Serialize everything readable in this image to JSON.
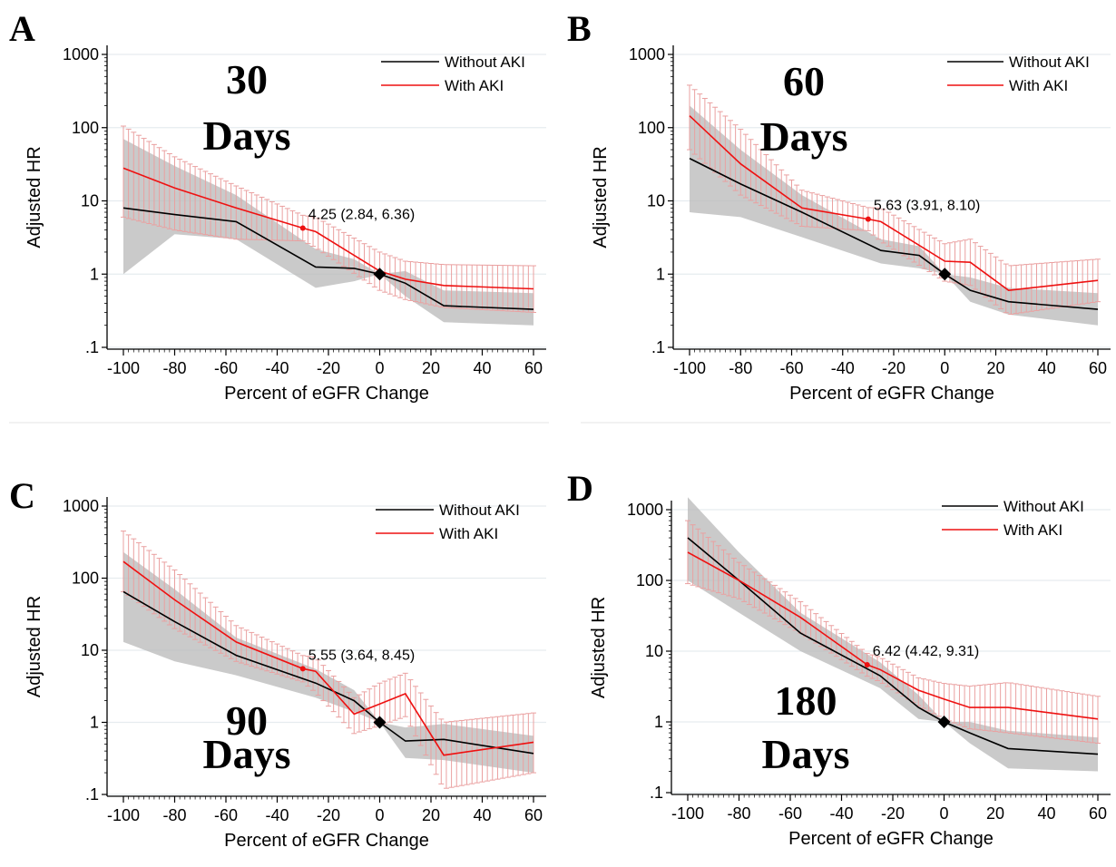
{
  "shared": {
    "ylabel": "Adjusted HR",
    "xlabel": "Percent of eGFR Change",
    "xticks": [
      -100,
      -80,
      -60,
      -40,
      -20,
      0,
      20,
      40,
      60
    ],
    "yticks": [
      {
        "v": 0.1,
        "label": ".1"
      },
      {
        "v": 1,
        "label": "1"
      },
      {
        "v": 10,
        "label": "10"
      },
      {
        "v": 100,
        "label": "100"
      },
      {
        "v": 1000,
        "label": "1000"
      }
    ],
    "legend": [
      "Without AKI",
      "With AKI"
    ],
    "colors": {
      "without": "#000000",
      "with": "#ee1111",
      "band_without": "#b8b8b8",
      "ci_with": "#eaa0a0",
      "grid": "#e6ecef"
    }
  },
  "chart_data": [
    {
      "type": "line",
      "panel": "A",
      "big_text": [
        "30",
        "Days"
      ],
      "xlim": [
        -100,
        60
      ],
      "ylim": [
        0.1,
        1000
      ],
      "yscale": "log",
      "grid": true,
      "legend_position": "top-right",
      "reference": {
        "x": 0,
        "y": 1
      },
      "annotation": {
        "text": "4.25 (2.84, 6.36)",
        "x": -30,
        "y": 4.25
      },
      "series": [
        {
          "name": "Without AKI",
          "x": [
            -100,
            -80,
            -56,
            -25,
            -10,
            0,
            10,
            25,
            60
          ],
          "y": [
            8,
            6.5,
            5.2,
            1.25,
            1.2,
            1,
            0.75,
            0.37,
            0.33
          ],
          "lo": [
            1.0,
            3.5,
            3.0,
            0.65,
            0.8,
            1,
            0.5,
            0.22,
            0.2
          ],
          "hi": [
            70,
            30,
            12,
            2.2,
            1.6,
            1,
            1.1,
            0.6,
            0.55
          ]
        },
        {
          "name": "With AKI",
          "x": [
            -100,
            -80,
            -56,
            -30,
            -25,
            0,
            10,
            25,
            60
          ],
          "y": [
            28,
            15,
            8,
            4.25,
            3.8,
            1.1,
            0.85,
            0.7,
            0.63
          ],
          "lo": [
            6,
            4,
            3,
            2.84,
            2.3,
            0.6,
            0.45,
            0.35,
            0.3
          ],
          "hi": [
            105,
            40,
            16,
            6.36,
            6.0,
            2.0,
            1.5,
            1.35,
            1.3
          ]
        }
      ]
    },
    {
      "type": "line",
      "panel": "B",
      "big_text": [
        "60",
        "Days"
      ],
      "xlim": [
        -100,
        60
      ],
      "ylim": [
        0.1,
        1000
      ],
      "yscale": "log",
      "grid": true,
      "legend_position": "top-right",
      "reference": {
        "x": 0,
        "y": 1
      },
      "annotation": {
        "text": "5.63 (3.91, 8.10)",
        "x": -30,
        "y": 5.63
      },
      "series": [
        {
          "name": "Without AKI",
          "x": [
            -100,
            -80,
            -56,
            -25,
            -10,
            0,
            10,
            25,
            60
          ],
          "y": [
            38,
            17,
            7,
            2.1,
            1.8,
            1,
            0.6,
            0.42,
            0.33
          ],
          "lo": [
            7,
            6,
            3.2,
            1.4,
            1.2,
            1,
            0.42,
            0.28,
            0.2
          ],
          "hi": [
            200,
            50,
            12,
            3.0,
            2.4,
            1,
            0.9,
            0.65,
            0.55
          ]
        },
        {
          "name": "With AKI",
          "x": [
            -100,
            -80,
            -56,
            -30,
            -25,
            0,
            10,
            25,
            60
          ],
          "y": [
            145,
            32,
            8,
            5.63,
            5.2,
            1.5,
            1.45,
            0.6,
            0.82
          ],
          "lo": [
            50,
            12,
            4.5,
            3.91,
            2.8,
            0.8,
            0.7,
            0.28,
            0.42
          ],
          "hi": [
            380,
            95,
            14,
            8.1,
            8.0,
            2.6,
            3.0,
            1.3,
            1.6
          ]
        }
      ]
    },
    {
      "type": "line",
      "panel": "C",
      "big_text": [
        "90",
        "Days"
      ],
      "xlim": [
        -100,
        60
      ],
      "ylim": [
        0.1,
        1000
      ],
      "yscale": "log",
      "grid": true,
      "legend_position": "top-right",
      "reference": {
        "x": 0,
        "y": 1
      },
      "annotation": {
        "text": "5.55 (3.64, 8.45)",
        "x": -30,
        "y": 5.55
      },
      "series": [
        {
          "name": "Without AKI",
          "x": [
            -100,
            -80,
            -56,
            -25,
            -10,
            0,
            10,
            25,
            60
          ],
          "y": [
            65,
            25,
            8.5,
            3.5,
            2.0,
            1,
            0.55,
            0.58,
            0.37
          ],
          "lo": [
            13,
            7,
            4.5,
            2.2,
            1.4,
            1,
            0.32,
            0.3,
            0.2
          ],
          "hi": [
            230,
            70,
            15,
            5.5,
            2.8,
            1,
            0.85,
            0.95,
            0.65
          ]
        },
        {
          "name": "With AKI",
          "x": [
            -100,
            -80,
            -56,
            -30,
            -25,
            -10,
            0,
            10,
            25,
            60
          ],
          "y": [
            170,
            50,
            13,
            5.55,
            5.1,
            1.3,
            1.8,
            2.5,
            0.35,
            0.53
          ],
          "lo": [
            65,
            20,
            7,
            3.64,
            2.6,
            0.7,
            0.9,
            1.2,
            0.12,
            0.2
          ],
          "hi": [
            450,
            130,
            22,
            8.45,
            8.0,
            2.2,
            3.5,
            4.8,
            1.0,
            1.35
          ]
        }
      ]
    },
    {
      "type": "line",
      "panel": "D",
      "big_text": [
        "180",
        "Days"
      ],
      "xlim": [
        -100,
        60
      ],
      "ylim": [
        0.1,
        1000
      ],
      "yscale": "log",
      "grid": true,
      "legend_position": "top-right",
      "reference": {
        "x": 0,
        "y": 1
      },
      "annotation": {
        "text": "6.42 (4.42, 9.31)",
        "x": -30,
        "y": 6.42
      },
      "series": [
        {
          "name": "Without AKI",
          "x": [
            -100,
            -80,
            -56,
            -25,
            -10,
            0,
            10,
            25,
            60
          ],
          "y": [
            400,
            100,
            18,
            4.5,
            1.6,
            1,
            0.7,
            0.42,
            0.35
          ],
          "lo": [
            100,
            35,
            10,
            3.0,
            1.1,
            1,
            0.5,
            0.22,
            0.2
          ],
          "hi": [
            1500,
            250,
            35,
            7.0,
            2.4,
            1,
            1.0,
            0.75,
            0.6
          ]
        },
        {
          "name": "With AKI",
          "x": [
            -100,
            -80,
            -56,
            -30,
            -25,
            -10,
            0,
            10,
            25,
            60
          ],
          "y": [
            250,
            100,
            30,
            6.42,
            5.5,
            2.8,
            2.1,
            1.6,
            1.6,
            1.1
          ],
          "lo": [
            90,
            55,
            18,
            4.42,
            3.7,
            1.7,
            1.1,
            0.8,
            0.7,
            0.5
          ],
          "hi": [
            700,
            180,
            50,
            9.31,
            8.2,
            4.2,
            3.5,
            3.2,
            3.6,
            2.3
          ]
        }
      ]
    }
  ]
}
